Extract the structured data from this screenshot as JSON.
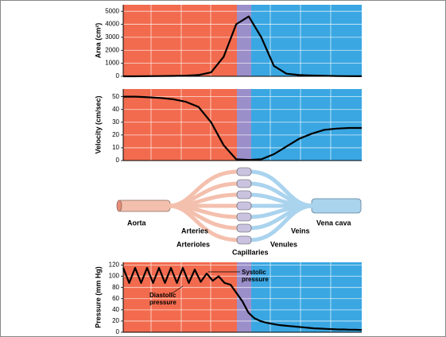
{
  "chart_data": [
    {
      "type": "line",
      "ylabel": "Area (cm²)",
      "categories": [
        null,
        null,
        null,
        null,
        null,
        null,
        null,
        null,
        null,
        null,
        null,
        null,
        null,
        null,
        null,
        null,
        null,
        null,
        null,
        null
      ],
      "values": [
        0,
        0,
        10,
        20,
        30,
        50,
        100,
        300,
        1500,
        4000,
        4600,
        3000,
        800,
        200,
        100,
        60,
        40,
        20,
        10,
        5
      ],
      "color": "#000000",
      "ylim": [
        0,
        5500
      ],
      "yticks": [
        0,
        1000,
        2000,
        3000,
        4000,
        5000
      ],
      "grid": true
    },
    {
      "type": "line",
      "ylabel": "Velocity (cm/sec)",
      "categories": [
        null,
        null,
        null,
        null,
        null,
        null,
        null,
        null,
        null,
        null,
        null,
        null,
        null,
        null,
        null,
        null,
        null,
        null,
        null,
        null
      ],
      "values": [
        50,
        50,
        49.5,
        49,
        48,
        46,
        42,
        30,
        12,
        1,
        0.5,
        1,
        5,
        11,
        17,
        21,
        24,
        25,
        25.5,
        25.5
      ],
      "color": "#000000",
      "ylim": [
        0,
        56
      ],
      "yticks": [
        0,
        10,
        20,
        30,
        40,
        50
      ],
      "grid": true
    },
    {
      "type": "line",
      "ylabel": "Pressure (mm Hg)",
      "categories": [
        null,
        null,
        null,
        null,
        null,
        null,
        null,
        null,
        null,
        null,
        null,
        null,
        null,
        null,
        null,
        null,
        null,
        null,
        null,
        null,
        null,
        null,
        null,
        null,
        null,
        null,
        null,
        null,
        null,
        null,
        null,
        null,
        null,
        null,
        null,
        null,
        null,
        null,
        null,
        null,
        null
      ],
      "values": [
        115,
        88,
        115,
        88,
        115,
        88,
        115,
        88,
        115,
        88,
        115,
        88,
        112,
        90,
        105,
        92,
        100,
        88,
        85,
        70,
        55,
        35,
        25,
        20,
        17,
        15,
        13,
        12,
        11,
        10,
        9,
        8,
        7,
        6.5,
        6,
        5.5,
        5,
        5,
        4.5,
        4.5,
        4
      ],
      "color": "#000000",
      "ylim": [
        0,
        125
      ],
      "yticks": [
        0,
        20,
        40,
        60,
        80,
        100,
        120
      ],
      "grid": true,
      "annotations": [
        "Systolic pressure",
        "Diastolic pressure"
      ]
    }
  ],
  "diagram": {
    "labels": [
      "Aorta",
      "Arteries",
      "Arterioles",
      "Capillaries",
      "Venules",
      "Veins",
      "Vena cava"
    ]
  }
}
